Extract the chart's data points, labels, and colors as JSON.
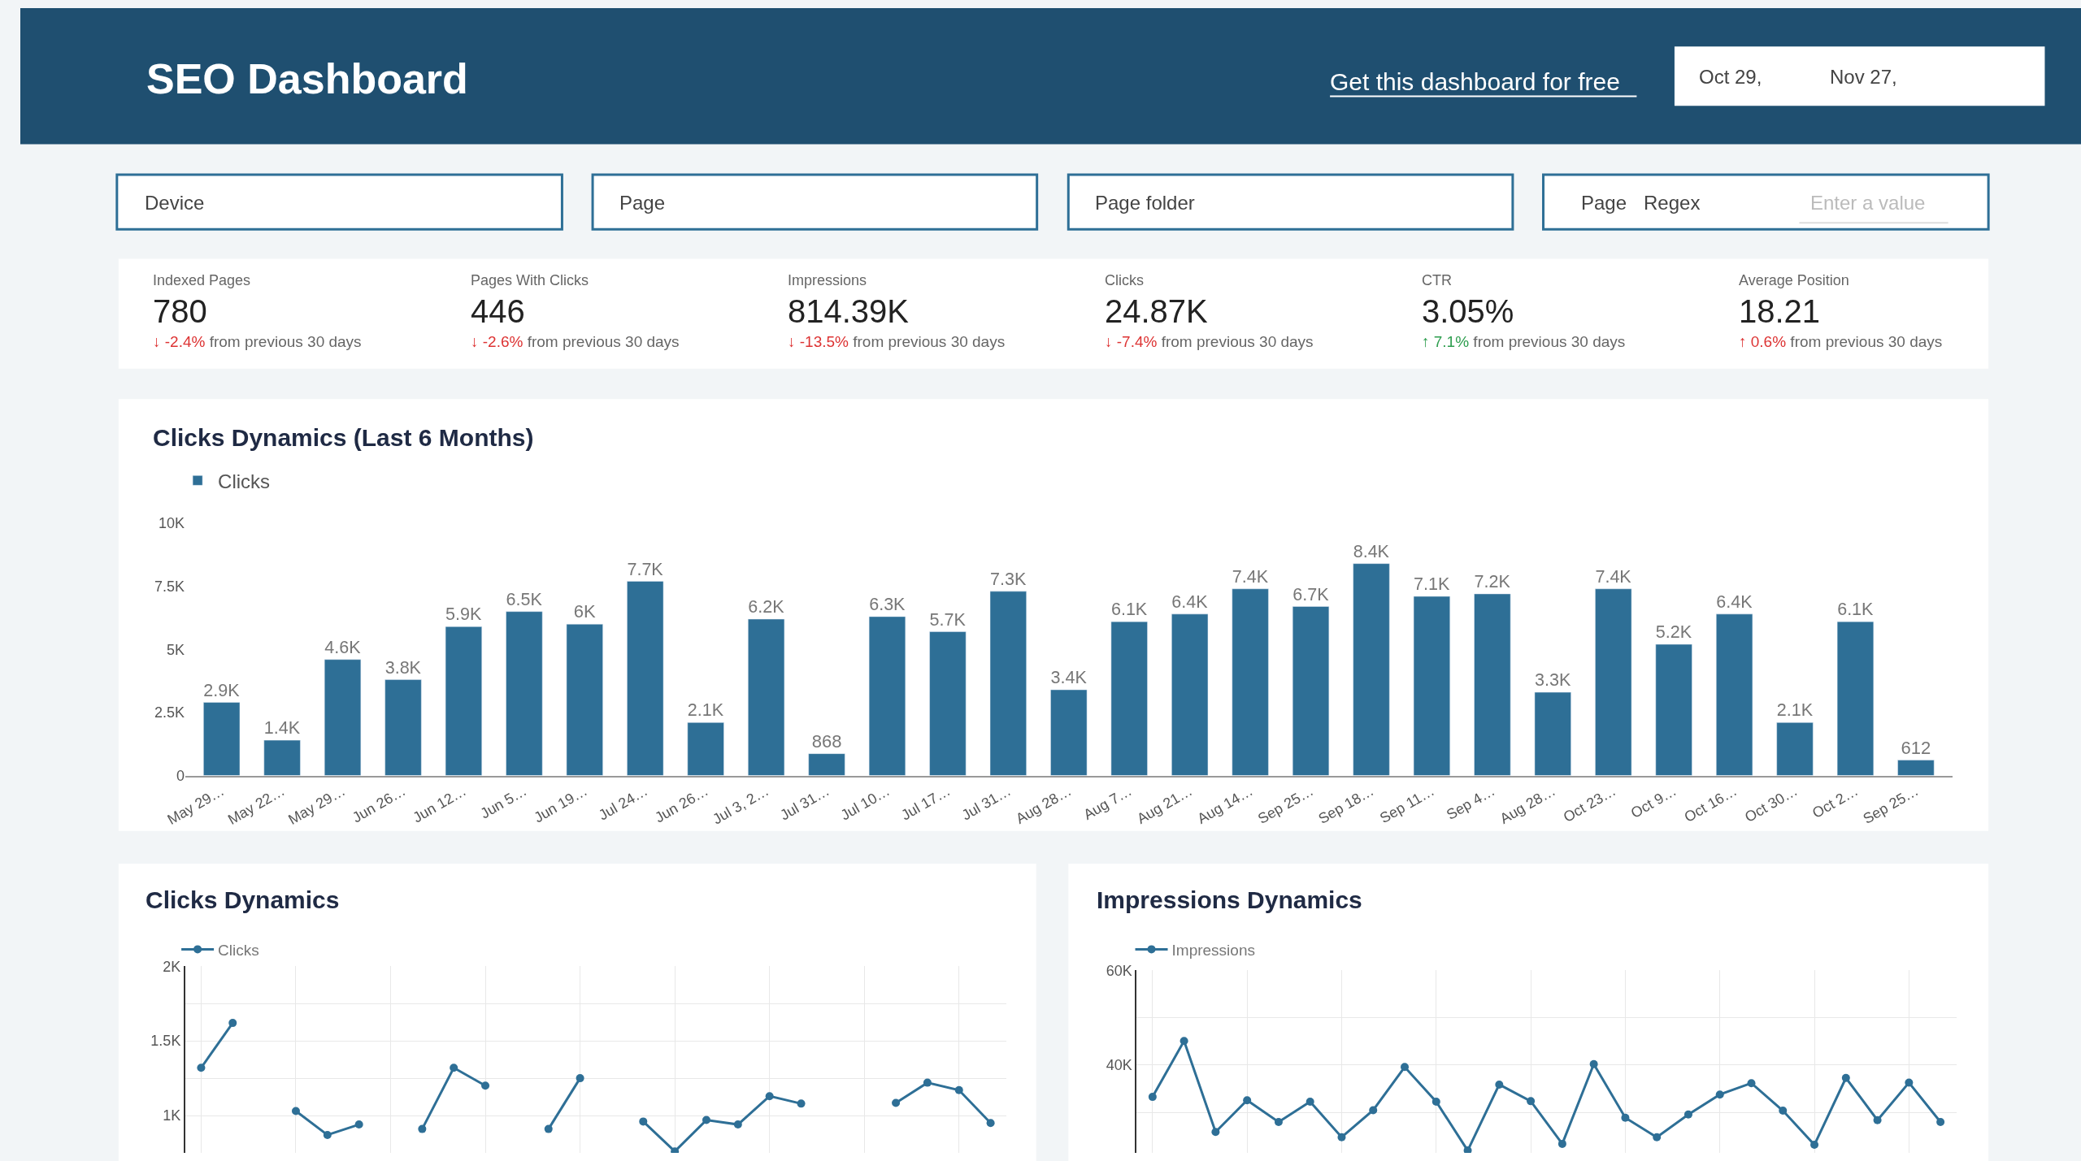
{
  "chart_data": [
    {
      "type": "other",
      "title": "SEO Dashboard",
      "annotations": [
        "Get this dashboard for free",
        "Oct 29,",
        "Nov 27,",
        "Device",
        "Page",
        "Page folder",
        "Page",
        "Regex",
        "Enter a value"
      ]
    },
    {
      "type": "other",
      "annotations": [
        "Indexed Pages",
        "780",
        "↓ -2.4% from previous 30 days",
        "Pages With Clicks",
        "446",
        "↓ -2.6% from previous 30 days",
        "Impressions",
        "814.39K",
        "↓ -13.5% from previous 30 days",
        "Clicks",
        "24.87K",
        "↓ -7.4% from previous 30 days",
        "CTR",
        "3.05%",
        "↑ 7.1% from previous 30 days",
        "Average Position",
        "18.21",
        "↑ 0.6% from previous 30 days"
      ]
    },
    {
      "type": "bar",
      "title": "Clicks Dynamics (Last 6 Months)",
      "categories": [
        "May 29…",
        "May 22…",
        "May 29…",
        "Jun 26…",
        "Jun 12…",
        "Jun 5…",
        "Jun 19…",
        "Jul 24…",
        "Jun 26…",
        "Jul 3, 2…",
        "Jul 31…",
        "Jul 10…",
        "Jul 17…",
        "Jul 31…",
        "Aug 28…",
        "Aug 7…",
        "Aug 21…",
        "Aug 14…",
        "Sep 25…",
        "Sep 18…",
        "Sep 11…",
        "Sep 4…",
        "Aug 28…",
        "Oct 23…",
        "Oct 9…",
        "Oct 16…",
        "Oct 30…",
        "Oct 2…",
        "Sep 25…"
      ],
      "series": [
        {
          "name": "Clicks",
          "color": "#2e6f96",
          "values": [
            2900,
            1400,
            4600,
            3800,
            5900,
            6500,
            6000,
            7700,
            2100,
            6200,
            868,
            6300,
            5700,
            7300,
            3400,
            6100,
            6400,
            7400,
            6700,
            8400,
            7100,
            7200,
            3300,
            7400,
            5200,
            6400,
            2100,
            6100,
            612
          ],
          "value_labels": [
            "2.9K",
            "1.4K",
            "4.6K",
            "3.8K",
            "5.9K",
            "6.5K",
            "6K",
            "7.7K",
            "2.1K",
            "6.2K",
            "868",
            "6.3K",
            "5.7K",
            "7.3K",
            "3.4K",
            "6.1K",
            "6.4K",
            "7.4K",
            "6.7K",
            "8.4K",
            "7.1K",
            "7.2K",
            "3.3K",
            "7.4K",
            "5.2K",
            "6.4K",
            "2.1K",
            "6.1K",
            "612"
          ]
        }
      ],
      "ylim": [
        0,
        10000
      ],
      "yticks": [
        0,
        {
          "value": 2500,
          "label": "2.5K"
        },
        {
          "value": 5000,
          "label": "5K"
        },
        {
          "value": 7500,
          "label": "7.5K"
        },
        {
          "value": 10000,
          "label": "10K"
        }
      ],
      "legend": "top left"
    },
    {
      "type": "line",
      "title": "Clicks Dynamics",
      "categories": [
        null,
        null,
        null,
        null,
        null,
        null,
        null,
        null,
        null,
        null,
        null,
        null,
        null,
        null,
        null,
        null,
        null,
        null,
        null,
        null,
        null,
        null,
        null,
        null,
        null,
        null
      ],
      "series": [
        {
          "name": "Clicks",
          "color": "#2e6f96",
          "values": [
            1320,
            1620,
            null,
            1030,
            870,
            940,
            null,
            910,
            1320,
            1200,
            null,
            910,
            1250,
            null,
            960,
            760,
            970,
            940,
            1130,
            1080,
            null,
            null,
            1085,
            1220,
            1170,
            950
          ]
        }
      ],
      "ylim": [
        750,
        2000
      ],
      "yticks": [
        {
          "value": 1000,
          "label": "1K"
        },
        {
          "value": 1250,
          "label": null
        },
        {
          "value": 1500,
          "label": "1.5K"
        },
        {
          "value": 1750,
          "label": null
        },
        {
          "value": 2000,
          "label": "2K"
        }
      ],
      "grid": true,
      "legend": "top left",
      "marker": "circle",
      "line_style": "solid"
    },
    {
      "type": "line",
      "title": "Impressions Dynamics",
      "categories": [
        null,
        null,
        null,
        null,
        null,
        null,
        null,
        null,
        null,
        null,
        null,
        null,
        null,
        null,
        null,
        null,
        null,
        null,
        null,
        null,
        null,
        null,
        null,
        null,
        null,
        null
      ],
      "series": [
        {
          "name": "Impressions",
          "color": "#2e6f96",
          "values": [
            33300,
            45100,
            25900,
            32600,
            28000,
            32300,
            24800,
            30500,
            39600,
            32300,
            22000,
            35900,
            32400,
            23400,
            40200,
            28900,
            24800,
            29600,
            33800,
            36200,
            30400,
            23200,
            37300,
            28400,
            36300,
            28000
          ]
        }
      ],
      "ylim": [
        21500,
        60000
      ],
      "yticks": [
        {
          "value": 30000,
          "label": null
        },
        {
          "value": 40000,
          "label": "40K"
        },
        {
          "value": 50000,
          "label": null
        },
        {
          "value": 60000,
          "label": "60K"
        }
      ],
      "grid": true,
      "legend": "top left",
      "marker": "circle",
      "line_style": "solid"
    }
  ]
}
